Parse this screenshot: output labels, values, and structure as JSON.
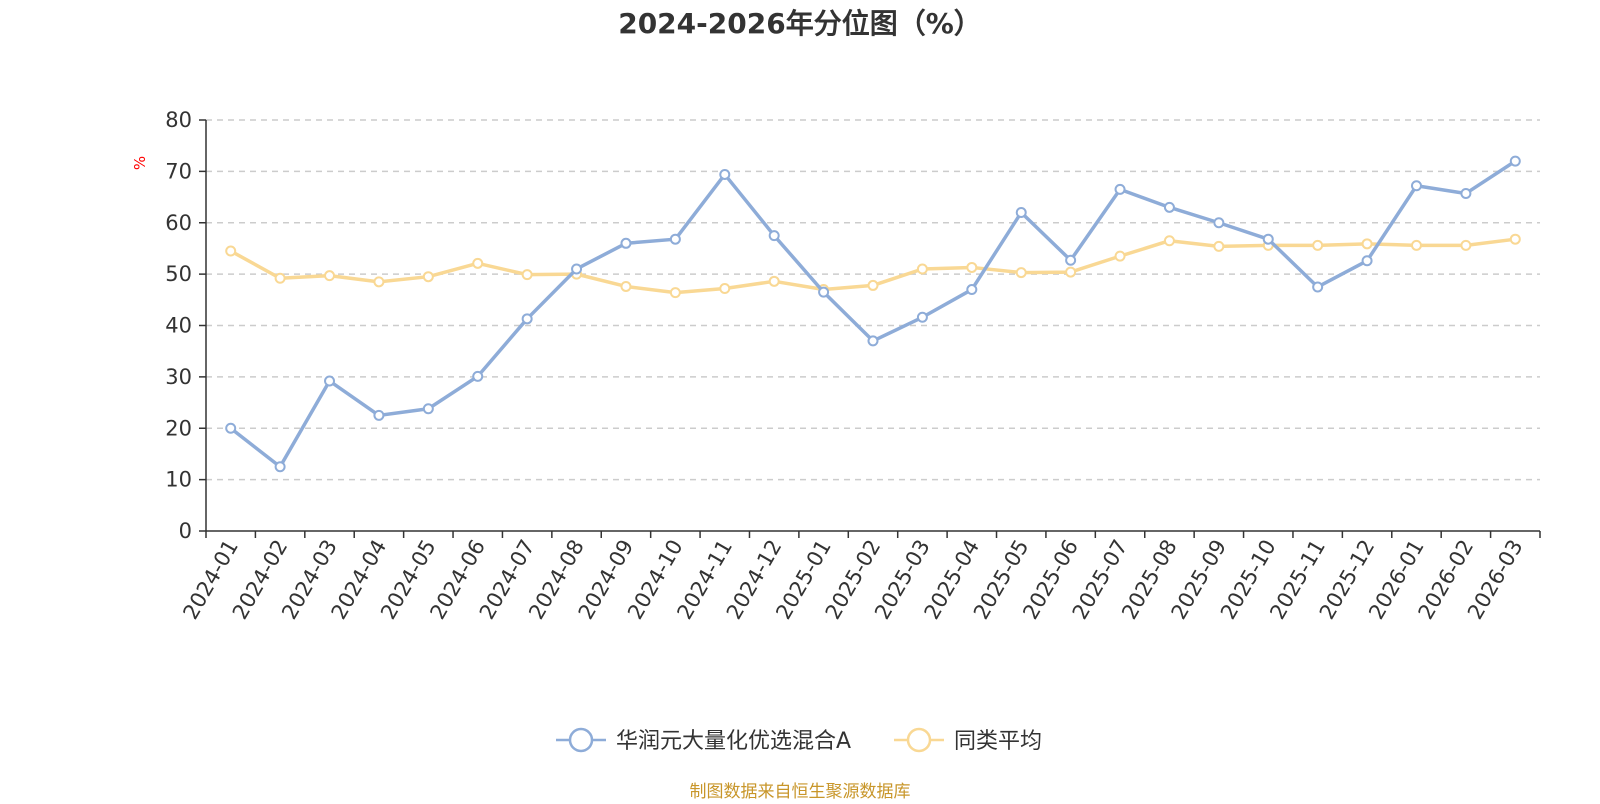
{
  "chart_data": {
    "type": "line",
    "title": "2024-2026年分位图（%）",
    "ylabel": "%",
    "xlabel": "",
    "ylim": [
      0,
      80
    ],
    "yticks": [
      0,
      10,
      20,
      30,
      40,
      50,
      60,
      70,
      80
    ],
    "grid": true,
    "legend_position": "bottom",
    "categories": [
      "2024-01",
      "2024-02",
      "2024-03",
      "2024-04",
      "2024-05",
      "2024-06",
      "2024-07",
      "2024-08",
      "2024-09",
      "2024-10",
      "2024-11",
      "2024-12",
      "2025-01",
      "2025-02",
      "2025-03",
      "2025-04",
      "2025-05",
      "2025-06",
      "2025-07",
      "2025-08",
      "2025-09",
      "2025-10",
      "2025-11",
      "2025-12",
      "2026-01",
      "2026-02",
      "2026-03"
    ],
    "series": [
      {
        "name": "华润元大量化优选混合A",
        "color": "#8eacd8",
        "values": [
          20.0,
          12.5,
          29.2,
          22.5,
          23.8,
          30.1,
          41.3,
          51.0,
          56.0,
          56.8,
          69.4,
          57.5,
          46.5,
          37.0,
          41.6,
          47.0,
          62.0,
          52.7,
          66.5,
          63.0,
          60.0,
          56.8,
          47.5,
          52.6,
          67.2,
          65.7,
          72.0
        ]
      },
      {
        "name": "同类平均",
        "color": "#f9d894",
        "values": [
          54.5,
          49.2,
          49.7,
          48.5,
          49.5,
          52.1,
          49.9,
          50.0,
          47.6,
          46.4,
          47.2,
          48.6,
          47.0,
          47.8,
          51.0,
          51.3,
          50.3,
          50.4,
          53.5,
          56.5,
          55.4,
          55.6,
          55.6,
          55.9,
          55.6,
          55.6,
          56.8
        ]
      }
    ]
  },
  "footer": {
    "source": "制图数据来自恒生聚源数据库",
    "source_color": "#c8962a"
  }
}
